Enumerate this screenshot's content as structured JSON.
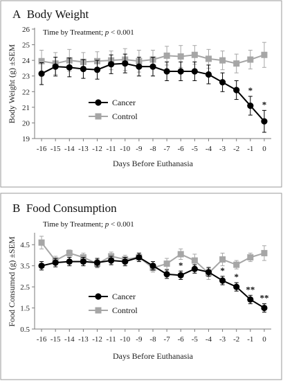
{
  "chart_data": [
    {
      "type": "line",
      "panel_label": "A",
      "title": "Body Weight",
      "annotation_prefix": "Time by Treatment; ",
      "annotation_p": "p",
      "annotation_suffix": " < 0.001",
      "xlabel": "Days Before Euthanasia",
      "ylabel": "Body Weight (g) ±SEM",
      "x": [
        -16,
        -15,
        -14,
        -13,
        -12,
        -11,
        -10,
        -9,
        -8,
        -7,
        -6,
        -5,
        -4,
        -3,
        -2,
        -1,
        0
      ],
      "x_tick_labels": [
        "-16",
        "-15",
        "-14",
        "-13",
        "-12",
        "-11",
        "-10",
        "-9",
        "-8",
        "-7",
        "-6",
        "-5",
        "-4",
        "-3",
        "-2",
        "-1",
        "0"
      ],
      "ylim": [
        19,
        26
      ],
      "y_ticks": [
        19,
        20,
        21,
        22,
        23,
        24,
        25,
        26
      ],
      "y_tick_labels": [
        "19",
        "20",
        "21",
        "22",
        "23",
        "24",
        "25",
        "26"
      ],
      "legend": "left-middle",
      "series": [
        {
          "name": "Cancer",
          "marker": "circle",
          "color": "#000000",
          "values": [
            23.15,
            23.6,
            23.55,
            23.45,
            23.4,
            23.75,
            23.8,
            23.6,
            23.6,
            23.3,
            23.3,
            23.3,
            23.1,
            22.6,
            22.1,
            21.1,
            20.1
          ],
          "error": [
            0.7,
            0.6,
            0.6,
            0.6,
            0.6,
            0.6,
            0.6,
            0.6,
            0.6,
            0.6,
            0.6,
            0.6,
            0.6,
            0.6,
            0.6,
            0.6,
            0.7
          ]
        },
        {
          "name": "Control",
          "marker": "square",
          "color": "#a6a6a6",
          "values": [
            23.95,
            23.8,
            24.0,
            23.9,
            23.95,
            24.0,
            24.05,
            23.95,
            24.05,
            24.3,
            24.25,
            24.35,
            24.1,
            24.0,
            23.8,
            24.05,
            24.35
          ],
          "error": [
            0.7,
            0.7,
            0.7,
            0.6,
            0.6,
            0.6,
            0.7,
            0.7,
            0.6,
            0.6,
            0.7,
            0.6,
            0.6,
            0.6,
            0.6,
            0.6,
            0.8
          ]
        }
      ],
      "significance": [
        {
          "x": -1,
          "label": "*"
        },
        {
          "x": 0,
          "label": "*"
        }
      ]
    },
    {
      "type": "line",
      "panel_label": "B",
      "title": "Food Consumption",
      "annotation_prefix": "Time by Treatment; ",
      "annotation_p": "p",
      "annotation_suffix": " < 0.001",
      "xlabel": "Days Before Euthanasia",
      "ylabel": "Food Consumed (g) ±SEM",
      "x": [
        -16,
        -15,
        -14,
        -13,
        -12,
        -11,
        -10,
        -9,
        -8,
        -7,
        -6,
        -5,
        -4,
        -3,
        -2,
        -1,
        0
      ],
      "x_tick_labels": [
        "-16",
        "-15",
        "-14",
        "-13",
        "-12",
        "-11",
        "-10",
        "-9",
        "-8",
        "-7",
        "-6",
        "-5",
        "-4",
        "-3",
        "-2",
        "-1",
        "0"
      ],
      "ylim": [
        0.5,
        5
      ],
      "y_ticks": [
        0.5,
        1.5,
        2.5,
        3.5,
        4.5
      ],
      "y_tick_labels": [
        "0.5",
        "1.5",
        "2.5",
        "3.5",
        "4.5"
      ],
      "legend": "bottom-left",
      "series": [
        {
          "name": "Cancer",
          "marker": "circle",
          "color": "#000000",
          "values": [
            3.5,
            3.65,
            3.7,
            3.7,
            3.65,
            3.75,
            3.7,
            3.9,
            3.5,
            3.1,
            3.05,
            3.35,
            3.2,
            2.8,
            2.5,
            1.9,
            1.5
          ],
          "error": [
            0.2,
            0.2,
            0.2,
            0.2,
            0.2,
            0.2,
            0.2,
            0.2,
            0.2,
            0.2,
            0.2,
            0.2,
            0.2,
            0.2,
            0.2,
            0.2,
            0.2
          ]
        },
        {
          "name": "Control",
          "marker": "square",
          "color": "#a6a6a6",
          "values": [
            4.6,
            3.75,
            4.1,
            3.9,
            3.6,
            3.95,
            3.8,
            3.9,
            3.4,
            3.6,
            4.05,
            3.75,
            3.15,
            3.8,
            3.55,
            3.9,
            4.1
          ],
          "error": [
            0.3,
            0.2,
            0.15,
            0.2,
            0.2,
            0.2,
            0.2,
            0.2,
            0.2,
            0.25,
            0.25,
            0.3,
            0.3,
            0.3,
            0.2,
            0.2,
            0.35
          ]
        }
      ],
      "significance": [
        {
          "x": -6,
          "label": "*"
        },
        {
          "x": -3,
          "label": "*"
        },
        {
          "x": -2,
          "label": "*"
        },
        {
          "x": -1,
          "label": "**"
        },
        {
          "x": 0,
          "label": "**"
        }
      ]
    }
  ]
}
